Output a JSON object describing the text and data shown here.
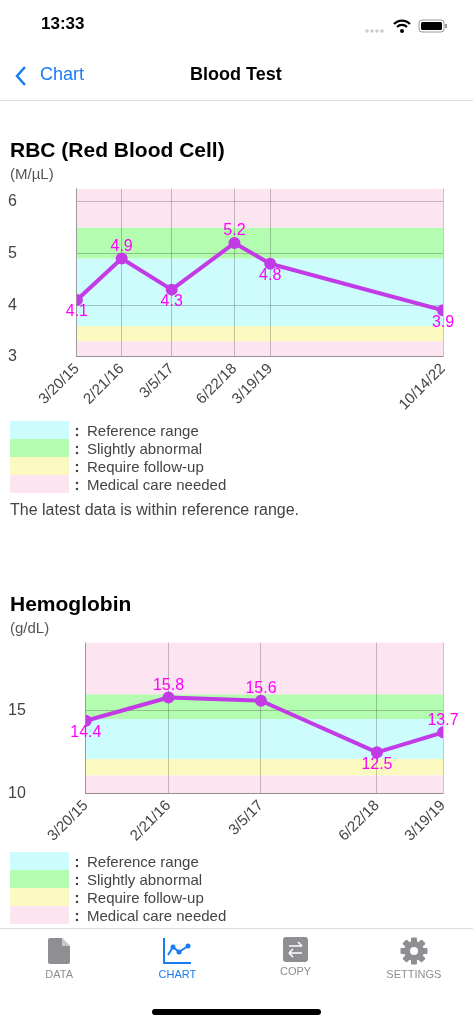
{
  "chart_data": [
    {
      "type": "other",
      "title": "Blood Test",
      "annotations": [
        "13:33",
        "Chart",
        "DATA",
        "CHART",
        "COPY",
        "SETTINGS"
      ]
    },
    {
      "type": "line",
      "title": "RBC (Red Blood Cell)",
      "ylabel": "(M/µL)",
      "x": [
        "2015-03-20",
        "2016-02-21",
        "2017-03-05",
        "2018-06-22",
        "2019-03-19",
        "2022-10-14"
      ],
      "series": [
        {
          "color": "#c23be6",
          "values": [
            4.1,
            4.9,
            4.3,
            5.2,
            4.8,
            3.9
          ]
        }
      ],
      "xlim": [
        "2015-03-20",
        "2022-10-14"
      ],
      "xticks": [
        {
          "value": "2015-03-20",
          "label": "3/20/15"
        },
        {
          "value": "2016-02-21",
          "label": "2/21/16"
        },
        {
          "value": "2017-03-05",
          "label": "3/5/17"
        },
        {
          "value": "2018-06-22",
          "label": "6/22/18"
        },
        {
          "value": "2019-03-19",
          "label": "3/19/19"
        },
        {
          "value": "2022-10-14",
          "label": "10/14/22"
        }
      ],
      "ylim": [
        3,
        6.25
      ],
      "yticks": [
        3,
        4,
        5,
        6
      ],
      "grid": true,
      "marker": "circle",
      "data_labels": true,
      "legend": "bottom left",
      "bands": [
        {
          "axis": "y",
          "from": 3.6,
          "to": 4.9,
          "label": "Reference range",
          "color": "#ccfcfc"
        },
        {
          "axis": "y",
          "from": 4.9,
          "to": 5.5,
          "label": "Slightly abnormal",
          "color": "#b4fcb0"
        },
        {
          "axis": "y",
          "from": 3.3,
          "to": 3.6,
          "label": "Require follow-up",
          "color": "#fcf9c0"
        },
        {
          "axis": "y",
          "from": 3,
          "to": 3.3,
          "label": "Medical care needed",
          "color": "#fde4f1"
        },
        {
          "axis": "y",
          "from": 5.5,
          "to": 6.25,
          "color": "#fde4f1"
        }
      ],
      "annotations": [
        "The latest data is within reference range."
      ]
    },
    {
      "type": "line",
      "title": "Hemoglobin",
      "ylabel": "(g/dL)",
      "x": [
        "2015-03-20",
        "2016-02-21",
        "2017-03-05",
        "2018-06-22",
        "2019-03-19"
      ],
      "series": [
        {
          "color": "#c23be6",
          "values": [
            14.4,
            15.8,
            15.6,
            12.5,
            13.7
          ]
        }
      ],
      "xlim": [
        "2015-03-20",
        "2019-03-19"
      ],
      "xticks": [
        {
          "value": "2015-03-20",
          "label": "3/20/15"
        },
        {
          "value": "2016-02-21",
          "label": "2/21/16"
        },
        {
          "value": "2017-03-05",
          "label": "3/5/17"
        },
        {
          "value": "2018-06-22",
          "label": "6/22/18"
        },
        {
          "value": "2019-03-19",
          "label": "3/19/19"
        }
      ],
      "ylim": [
        10,
        19.1
      ],
      "yticks": [
        10,
        15
      ],
      "grid": true,
      "marker": "circle",
      "data_labels": true,
      "legend": "bottom left",
      "bands": [
        {
          "axis": "y",
          "from": 12.1,
          "to": 14.5,
          "label": "Reference range",
          "color": "#ccfcfc"
        },
        {
          "axis": "y",
          "from": 14.5,
          "to": 16,
          "label": "Slightly abnormal",
          "color": "#b4fcb0"
        },
        {
          "axis": "y",
          "from": 11.1,
          "to": 12.1,
          "label": "Require follow-up",
          "color": "#fcf9c0"
        },
        {
          "axis": "y",
          "from": 10,
          "to": 11.1,
          "label": "Medical care needed",
          "color": "#fde4f1"
        },
        {
          "axis": "y",
          "from": 16,
          "to": 19.1,
          "color": "#fde4f1"
        }
      ]
    }
  ]
}
